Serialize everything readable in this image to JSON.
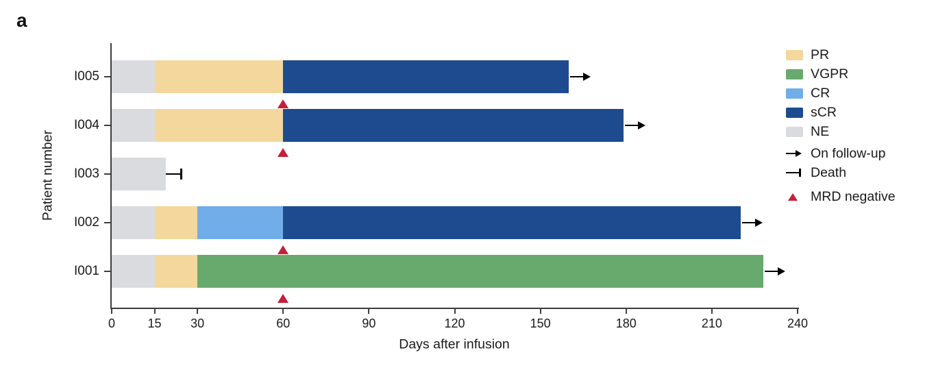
{
  "panel_label": "a",
  "colors": {
    "PR": "#F3D79D",
    "VGPR": "#68A96D",
    "CR": "#70ADE9",
    "sCR": "#1E4B8F",
    "NE": "#DADBDE",
    "mrd_negative": "#C32139",
    "axis": "#3D3D3D",
    "marker": "#000000"
  },
  "chart_data": {
    "type": "bar",
    "orientation": "horizontal",
    "xlabel": "Days after infusion",
    "ylabel": "Patient number",
    "xlim": [
      0,
      240
    ],
    "xticks": [
      "0",
      "15",
      "30",
      "60",
      "90",
      "120",
      "150",
      "180",
      "210",
      "240"
    ],
    "xtick_values": [
      0,
      15,
      30,
      60,
      90,
      120,
      150,
      180,
      210,
      240
    ],
    "grid": false,
    "legend_position": "right",
    "patients": [
      {
        "id": "I005",
        "segments": [
          {
            "response": "NE",
            "start": 0,
            "end": 15
          },
          {
            "response": "PR",
            "start": 15,
            "end": 60
          },
          {
            "response": "sCR",
            "start": 60,
            "end": 160
          }
        ],
        "end_marker": "on-follow-up",
        "mrd_negative_day": 60
      },
      {
        "id": "I004",
        "segments": [
          {
            "response": "NE",
            "start": 0,
            "end": 15
          },
          {
            "response": "PR",
            "start": 15,
            "end": 60
          },
          {
            "response": "sCR",
            "start": 60,
            "end": 179
          }
        ],
        "end_marker": "on-follow-up",
        "mrd_negative_day": 60
      },
      {
        "id": "I003",
        "segments": [
          {
            "response": "NE",
            "start": 0,
            "end": 19
          }
        ],
        "end_marker": "death",
        "death_day": 24
      },
      {
        "id": "I002",
        "segments": [
          {
            "response": "NE",
            "start": 0,
            "end": 15
          },
          {
            "response": "PR",
            "start": 15,
            "end": 30
          },
          {
            "response": "CR",
            "start": 30,
            "end": 60
          },
          {
            "response": "sCR",
            "start": 60,
            "end": 220
          }
        ],
        "end_marker": "on-follow-up",
        "mrd_negative_day": 60
      },
      {
        "id": "I001",
        "segments": [
          {
            "response": "NE",
            "start": 0,
            "end": 15
          },
          {
            "response": "PR",
            "start": 15,
            "end": 30
          },
          {
            "response": "VGPR",
            "start": 30,
            "end": 228
          }
        ],
        "end_marker": "on-follow-up",
        "mrd_negative_day": 60
      }
    ],
    "legend": [
      {
        "label": "PR",
        "type": "swatch",
        "color_key": "PR"
      },
      {
        "label": "VGPR",
        "type": "swatch",
        "color_key": "VGPR"
      },
      {
        "label": "CR",
        "type": "swatch",
        "color_key": "CR"
      },
      {
        "label": "sCR",
        "type": "swatch",
        "color_key": "sCR"
      },
      {
        "label": "NE",
        "type": "swatch",
        "color_key": "NE"
      },
      {
        "label": "On follow-up",
        "type": "arrow"
      },
      {
        "label": "Death",
        "type": "death"
      },
      {
        "label": "MRD negative",
        "type": "triangle"
      }
    ]
  }
}
